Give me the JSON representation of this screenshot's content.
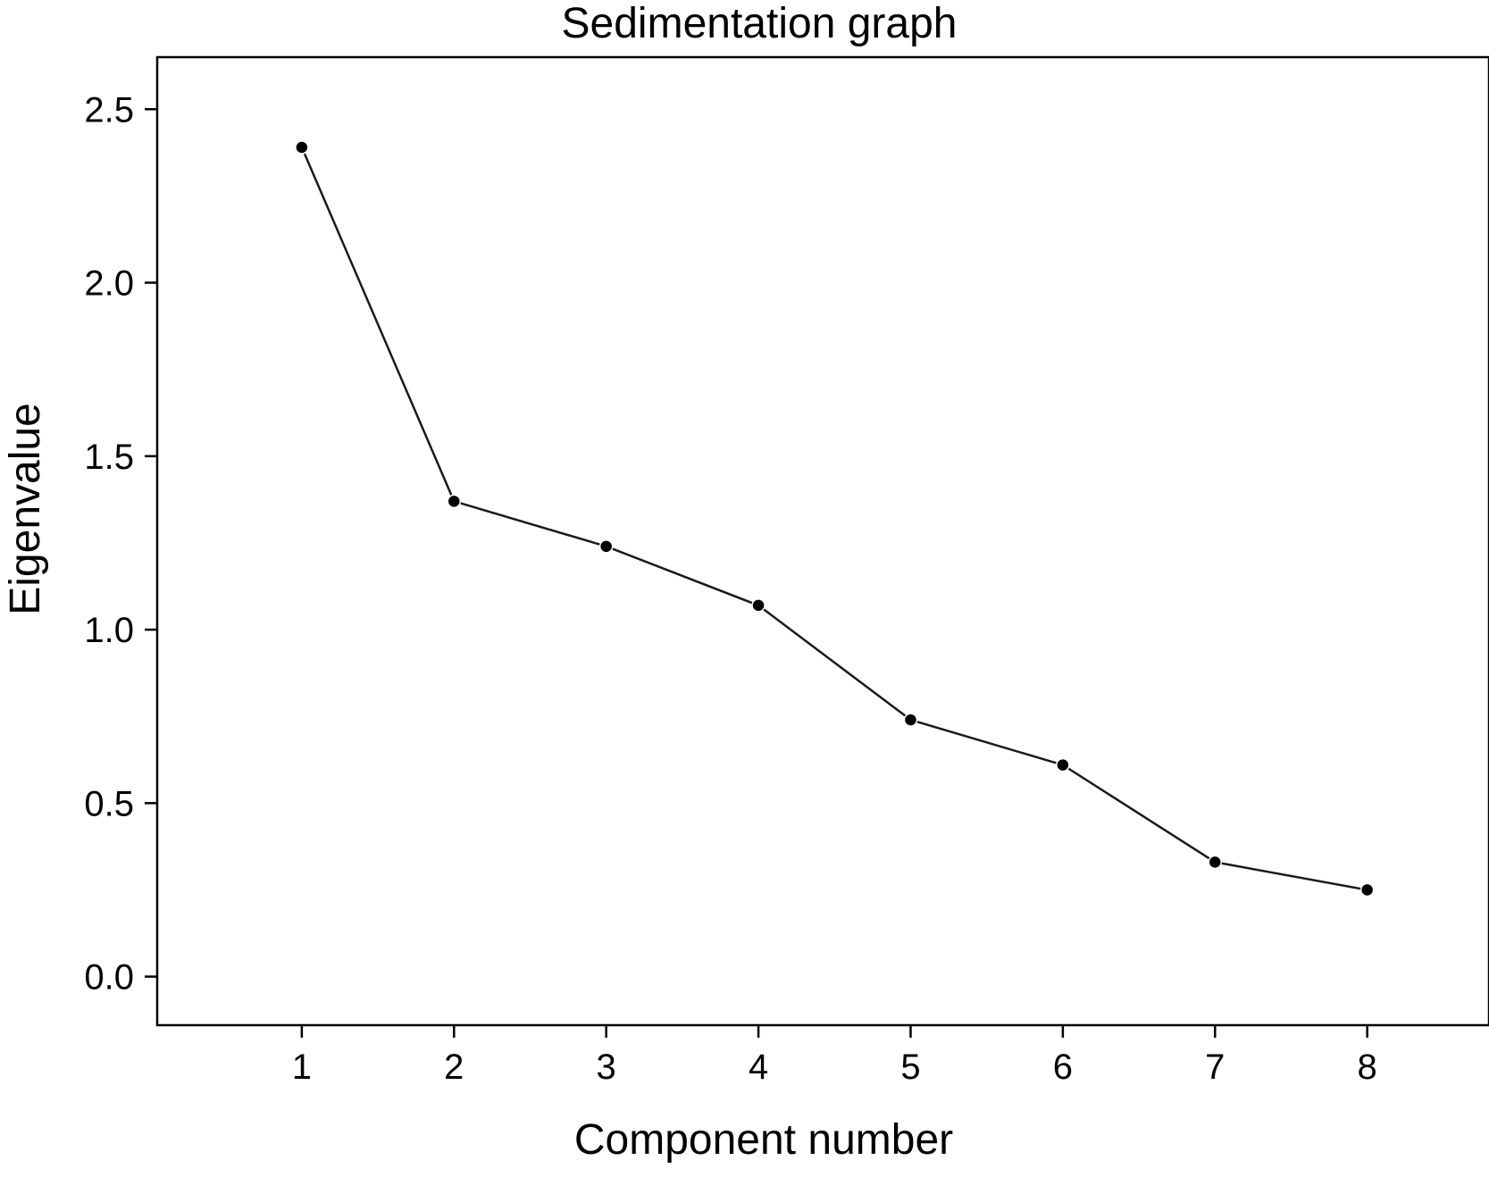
{
  "chart_data": {
    "type": "line",
    "title": "Sedimentation graph",
    "xlabel": "Component number",
    "ylabel": "Eigenvalue",
    "x": [
      1,
      2,
      3,
      4,
      5,
      6,
      7,
      8
    ],
    "series": [
      {
        "values": [
          2.39,
          1.37,
          1.24,
          1.07,
          0.74,
          0.61,
          0.33,
          0.25
        ]
      }
    ],
    "xticks": [
      "1",
      "2",
      "3",
      "4",
      "5",
      "6",
      "7",
      "8"
    ],
    "yticks": [
      "0.0",
      "0.5",
      "1.0",
      "1.5",
      "2.0",
      "2.5"
    ],
    "xlim": [
      0.05,
      8.8
    ],
    "ylim": [
      -0.14,
      2.65
    ],
    "grid": false,
    "legend": "none",
    "line_color": "#1a1a1a",
    "marker_color": "#000000"
  }
}
